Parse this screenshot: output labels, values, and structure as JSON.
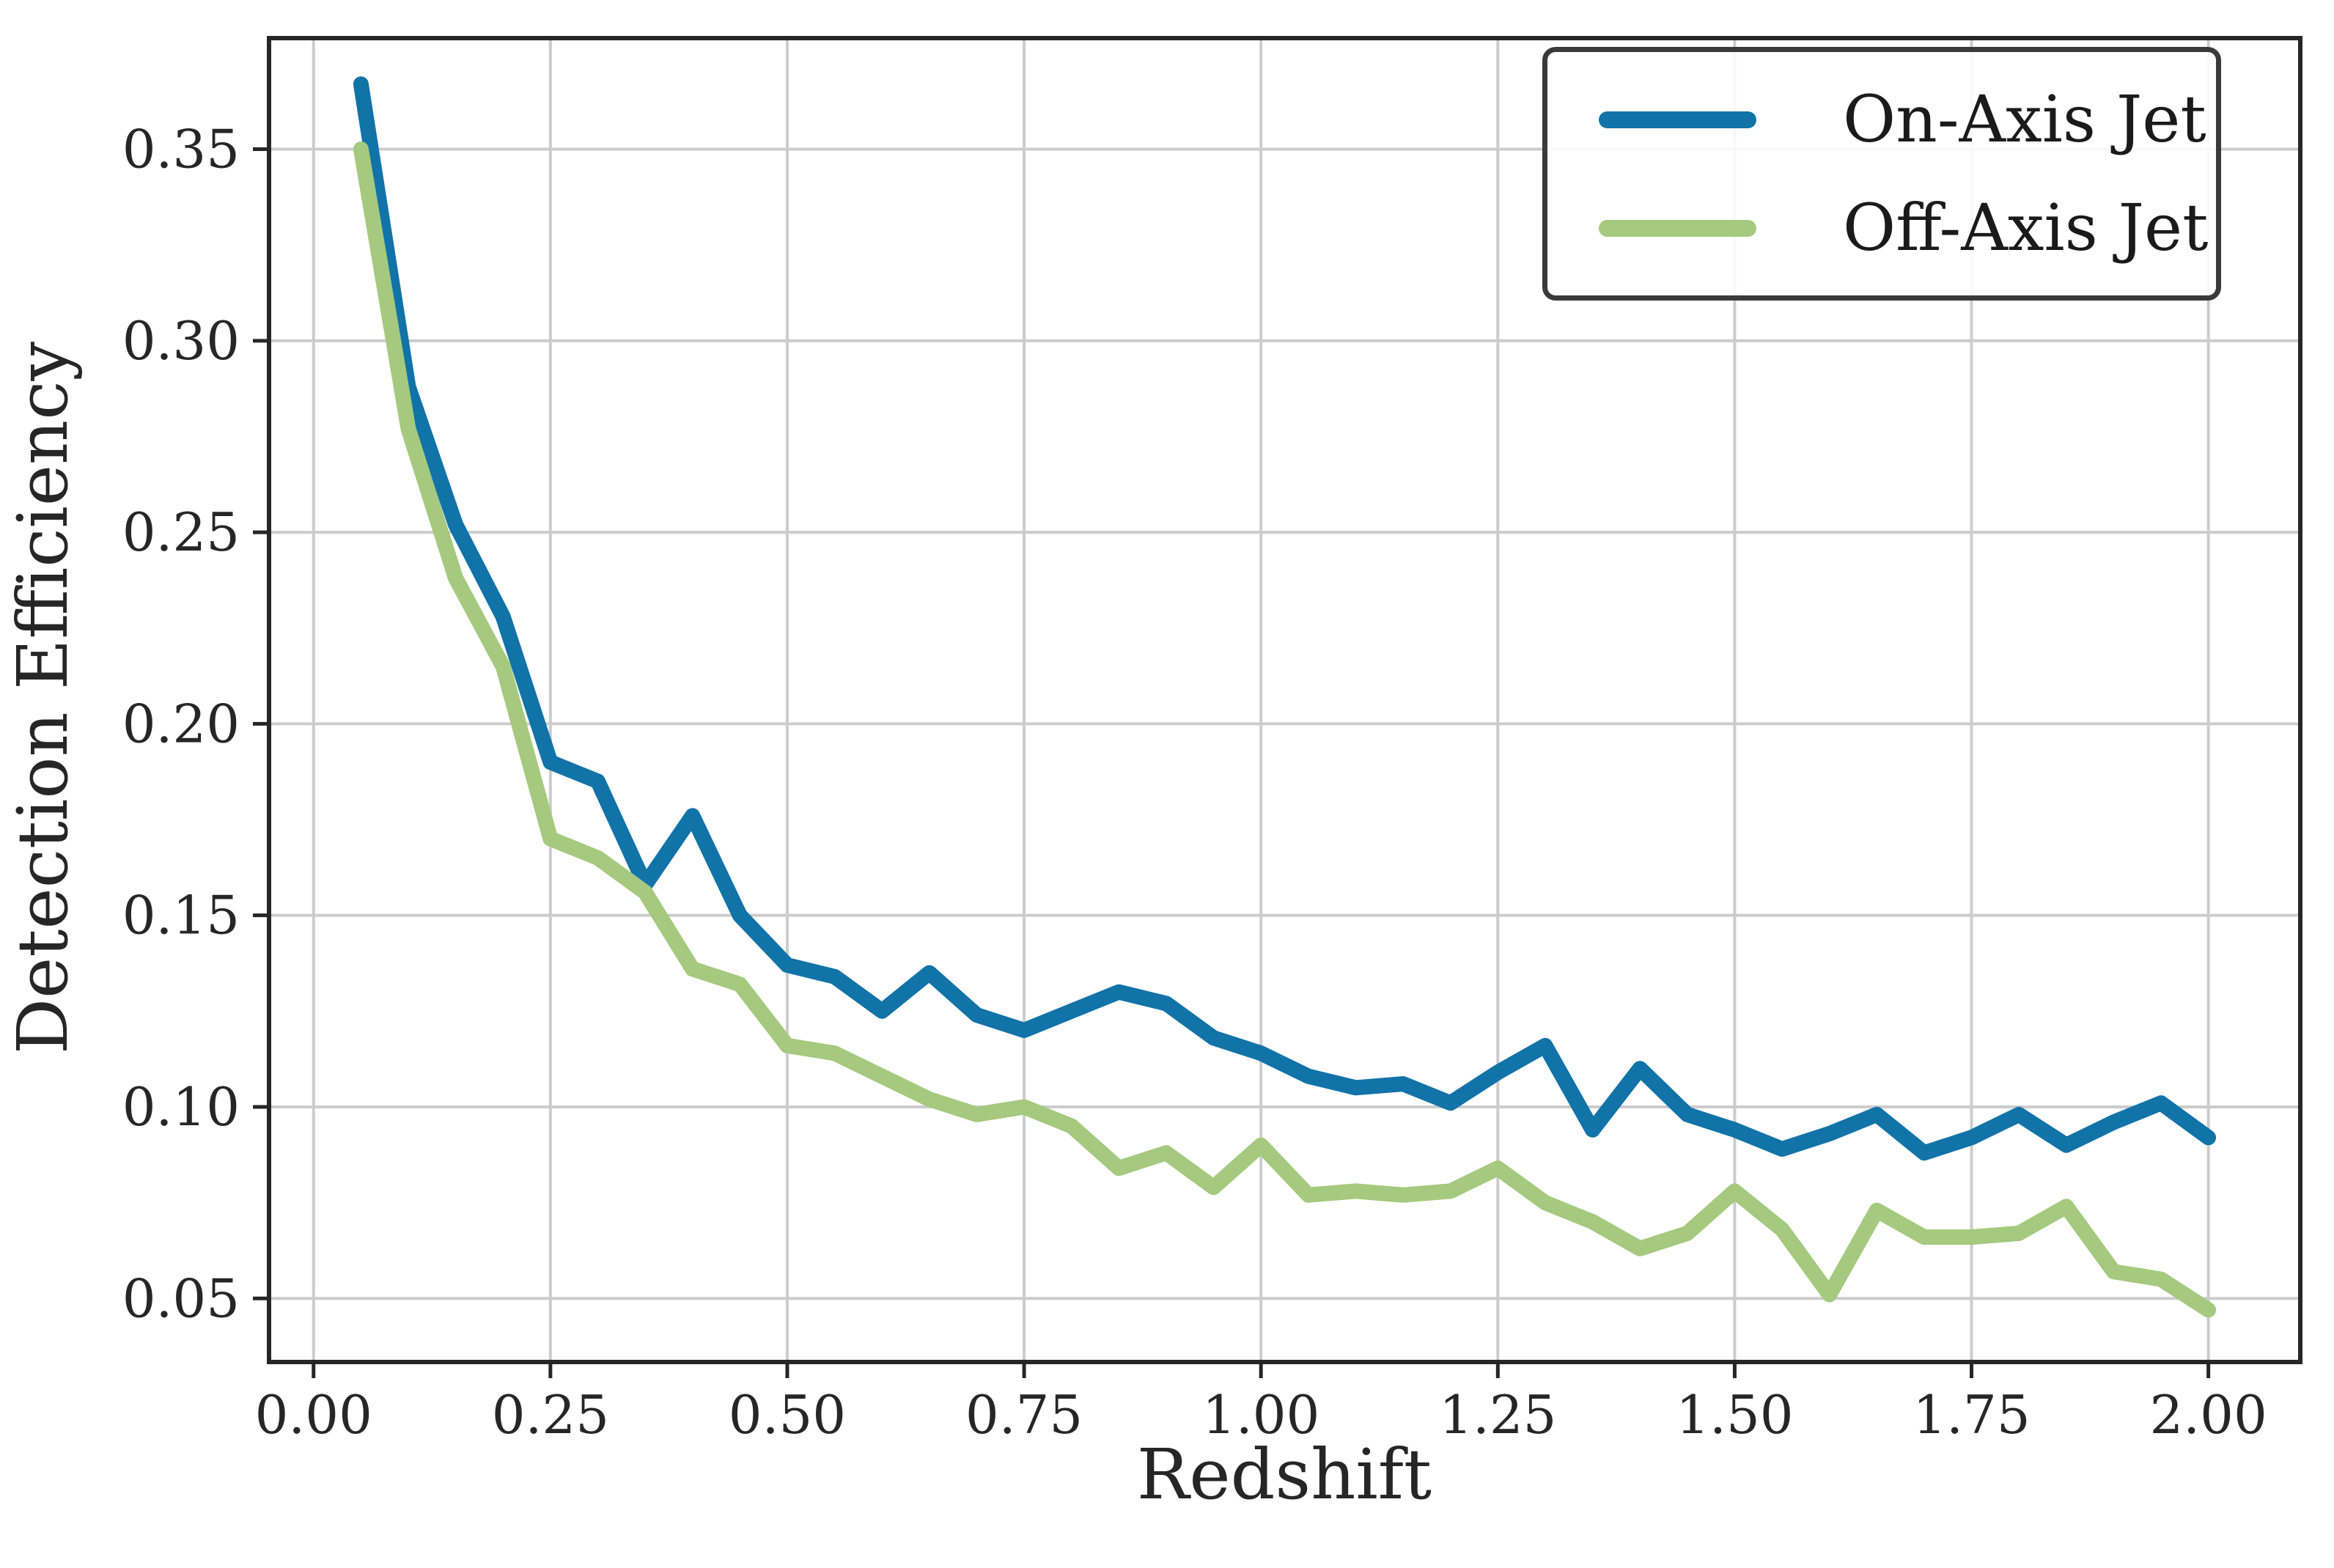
{
  "figure": {
    "background_color": "#ffffff",
    "grid_color": "#cccccc",
    "spine_color": "#262626",
    "tick_label_color": "#262626"
  },
  "chart_data": {
    "type": "line",
    "title": "",
    "xlabel": "Redshift",
    "ylabel": "Detection Efficiency",
    "grid": true,
    "legend_position": "upper right",
    "xlim": [
      -0.047,
      2.097
    ],
    "ylim": [
      0.0334,
      0.379
    ],
    "x_ticks": {
      "values": [
        0.0,
        0.25,
        0.5,
        0.75,
        1.0,
        1.25,
        1.5,
        1.75,
        2.0
      ],
      "labels": [
        "0.00",
        "0.25",
        "0.50",
        "0.75",
        "1.00",
        "1.25",
        "1.50",
        "1.75",
        "2.00"
      ]
    },
    "y_ticks": {
      "values": [
        0.05,
        0.1,
        0.15,
        0.2,
        0.25,
        0.3,
        0.35
      ],
      "labels": [
        "0.05",
        "0.10",
        "0.15",
        "0.20",
        "0.25",
        "0.30",
        "0.35"
      ]
    },
    "x": [
      0.05,
      0.1,
      0.15,
      0.2,
      0.25,
      0.3,
      0.35,
      0.4,
      0.45,
      0.5,
      0.55,
      0.6,
      0.65,
      0.7,
      0.75,
      0.8,
      0.85,
      0.9,
      0.95,
      1.0,
      1.05,
      1.1,
      1.15,
      1.2,
      1.25,
      1.3,
      1.35,
      1.4,
      1.45,
      1.5,
      1.55,
      1.6,
      1.65,
      1.7,
      1.75,
      1.8,
      1.85,
      1.9,
      1.95,
      2.0
    ],
    "series": [
      {
        "name": "On-Axis Jet",
        "color": "#1173a8",
        "values": [
          0.367,
          0.288,
          0.252,
          0.228,
          0.19,
          0.185,
          0.158,
          0.176,
          0.15,
          0.137,
          0.134,
          0.125,
          0.135,
          0.124,
          0.12,
          0.125,
          0.13,
          0.127,
          0.118,
          0.114,
          0.108,
          0.105,
          0.106,
          0.101,
          0.109,
          0.116,
          0.094,
          0.11,
          0.098,
          0.094,
          0.089,
          0.093,
          0.098,
          0.088,
          0.092,
          0.098,
          0.09,
          0.096,
          0.101,
          0.092
        ]
      },
      {
        "name": "Off-Axis Jet",
        "color": "#a5c97e",
        "values": [
          0.35,
          0.277,
          0.238,
          0.215,
          0.17,
          0.165,
          0.156,
          0.136,
          0.132,
          0.116,
          0.114,
          0.108,
          0.102,
          0.098,
          0.1,
          0.095,
          0.084,
          0.088,
          0.079,
          0.09,
          0.077,
          0.078,
          0.077,
          0.078,
          0.084,
          0.075,
          0.07,
          0.063,
          0.067,
          0.078,
          0.068,
          0.051,
          0.073,
          0.066,
          0.066,
          0.067,
          0.074,
          0.057,
          0.055,
          0.047
        ]
      }
    ]
  }
}
